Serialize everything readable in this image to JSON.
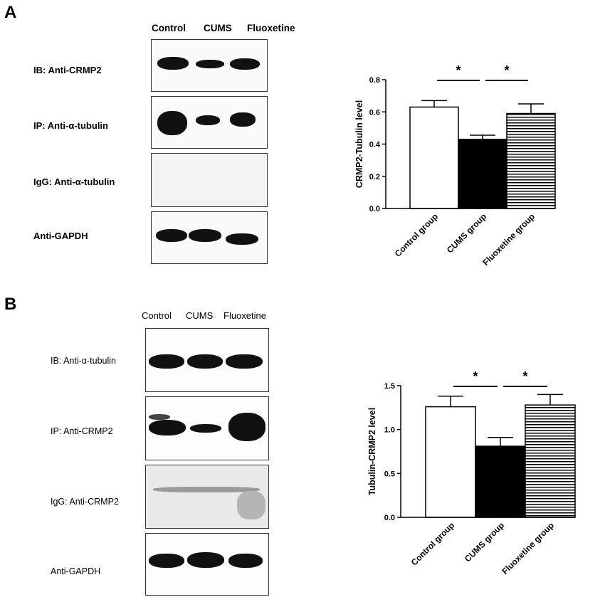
{
  "panels": [
    {
      "letter": "A",
      "lanes": [
        "Control",
        "CUMS",
        "Fluoxetine"
      ],
      "rows": [
        "IB: Anti-CRMP2",
        "IP: Anti-α-tubulin",
        "IgG: Anti-α-tubulin",
        "Anti-GAPDH"
      ]
    },
    {
      "letter": "B",
      "lanes": [
        "Control",
        "CUMS",
        "Fluoxetine"
      ],
      "rows": [
        "IB: Anti-α-tubulin",
        "IP: Anti-CRMP2",
        "IgG: Anti-CRMP2",
        "Anti-GAPDH"
      ]
    }
  ],
  "chart_data": [
    {
      "type": "bar",
      "categories": [
        "Control group",
        "CUMS group",
        "Fluoxetine group"
      ],
      "values": [
        0.63,
        0.43,
        0.59
      ],
      "errors": [
        0.04,
        0.025,
        0.06
      ],
      "ylabel": "CRMP2-Tubulin level",
      "ylim": [
        0,
        0.8
      ],
      "yticks": [
        "0.0",
        "0.2",
        "0.4",
        "0.6",
        "0.8"
      ],
      "fills": [
        "white",
        "black",
        "horizontal-stripes"
      ],
      "significance": [
        "*",
        "*"
      ]
    },
    {
      "type": "bar",
      "categories": [
        "Control group",
        "CUMS group",
        "Fluoxetine group"
      ],
      "values": [
        1.26,
        0.81,
        1.28
      ],
      "errors": [
        0.12,
        0.1,
        0.12
      ],
      "ylabel": "Tubulin-CRMP2 level",
      "ylim": [
        0,
        1.5
      ],
      "yticks": [
        "0.0",
        "0.5",
        "1.0",
        "1.5"
      ],
      "fills": [
        "white",
        "black",
        "horizontal-stripes"
      ],
      "significance": [
        "*",
        "*"
      ]
    }
  ]
}
